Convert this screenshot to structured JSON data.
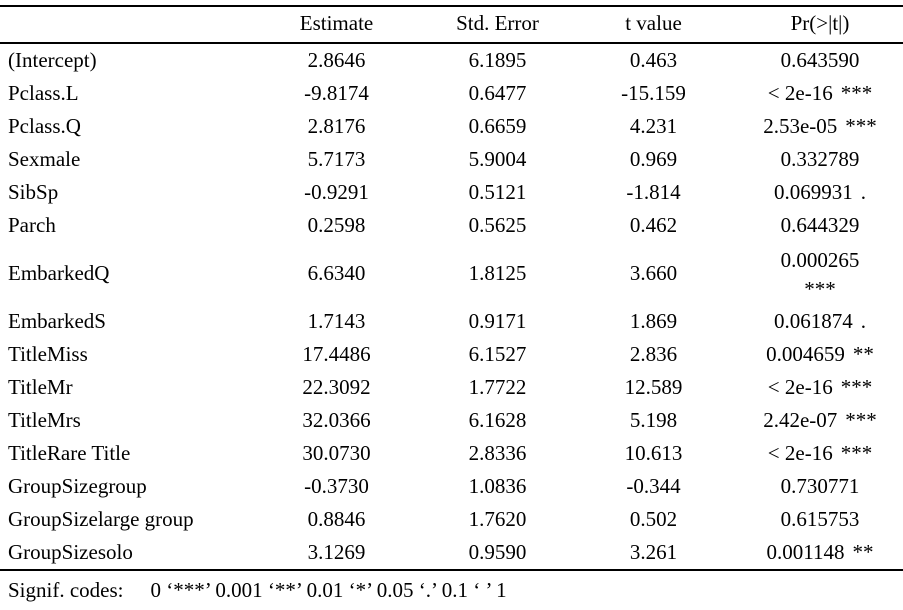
{
  "colors": {
    "text": "#000000",
    "background": "#ffffff",
    "rule": "#000000"
  },
  "table": {
    "headers": [
      "Estimate",
      "Std. Error",
      "t value",
      "Pr(>|t|)"
    ],
    "rows": [
      {
        "term": "(Intercept)",
        "estimate": "2.8646",
        "std_error": "6.1895",
        "t_value": "0.463",
        "p_value": "0.643590",
        "signif": ""
      },
      {
        "term": "Pclass.L",
        "estimate": "-9.8174",
        "std_error": "0.6477",
        "t_value": "-15.159",
        "p_value": "< 2e-16",
        "signif": "***"
      },
      {
        "term": "Pclass.Q",
        "estimate": "2.8176",
        "std_error": "0.6659",
        "t_value": "4.231",
        "p_value": "2.53e-05",
        "signif": "***"
      },
      {
        "term": "Sexmale",
        "estimate": "5.7173",
        "std_error": "5.9004",
        "t_value": "0.969",
        "p_value": "0.332789",
        "signif": ""
      },
      {
        "term": "SibSp",
        "estimate": "-0.9291",
        "std_error": "0.5121",
        "t_value": "-1.814",
        "p_value": "0.069931",
        "signif": "."
      },
      {
        "term": "Parch",
        "estimate": "0.2598",
        "std_error": "0.5625",
        "t_value": "0.462",
        "p_value": "0.644329",
        "signif": ""
      },
      {
        "term": "EmbarkedQ",
        "estimate": "6.6340",
        "std_error": "1.8125",
        "t_value": "3.660",
        "p_value": "0.000265",
        "signif": "***",
        "signif_wrapped": true
      },
      {
        "term": "EmbarkedS",
        "estimate": "1.7143",
        "std_error": "0.9171",
        "t_value": "1.869",
        "p_value": "0.061874",
        "signif": "."
      },
      {
        "term": "TitleMiss",
        "estimate": "17.4486",
        "std_error": "6.1527",
        "t_value": "2.836",
        "p_value": "0.004659",
        "signif": "**"
      },
      {
        "term": "TitleMr",
        "estimate": "22.3092",
        "std_error": "1.7722",
        "t_value": "12.589",
        "p_value": "< 2e-16",
        "signif": "***"
      },
      {
        "term": "TitleMrs",
        "estimate": "32.0366",
        "std_error": "6.1628",
        "t_value": "5.198",
        "p_value": "2.42e-07",
        "signif": "***"
      },
      {
        "term": "TitleRare Title",
        "estimate": "30.0730",
        "std_error": "2.8336",
        "t_value": "10.613",
        "p_value": "< 2e-16",
        "signif": "***"
      },
      {
        "term": "GroupSizegroup",
        "estimate": "-0.3730",
        "std_error": "1.0836",
        "t_value": "-0.344",
        "p_value": "0.730771",
        "signif": ""
      },
      {
        "term": "GroupSizelarge group",
        "estimate": "0.8846",
        "std_error": "1.7620",
        "t_value": "0.502",
        "p_value": "0.615753",
        "signif": ""
      },
      {
        "term": "GroupSizesolo",
        "estimate": "3.1269",
        "std_error": "0.9590",
        "t_value": "3.261",
        "p_value": "0.001148",
        "signif": "**"
      }
    ]
  },
  "footer": {
    "label": "Signif. codes:",
    "codes": "0 ‘***’ 0.001 ‘**’ 0.01 ‘*’ 0.05 ‘.’ 0.1 ‘ ’ 1"
  }
}
